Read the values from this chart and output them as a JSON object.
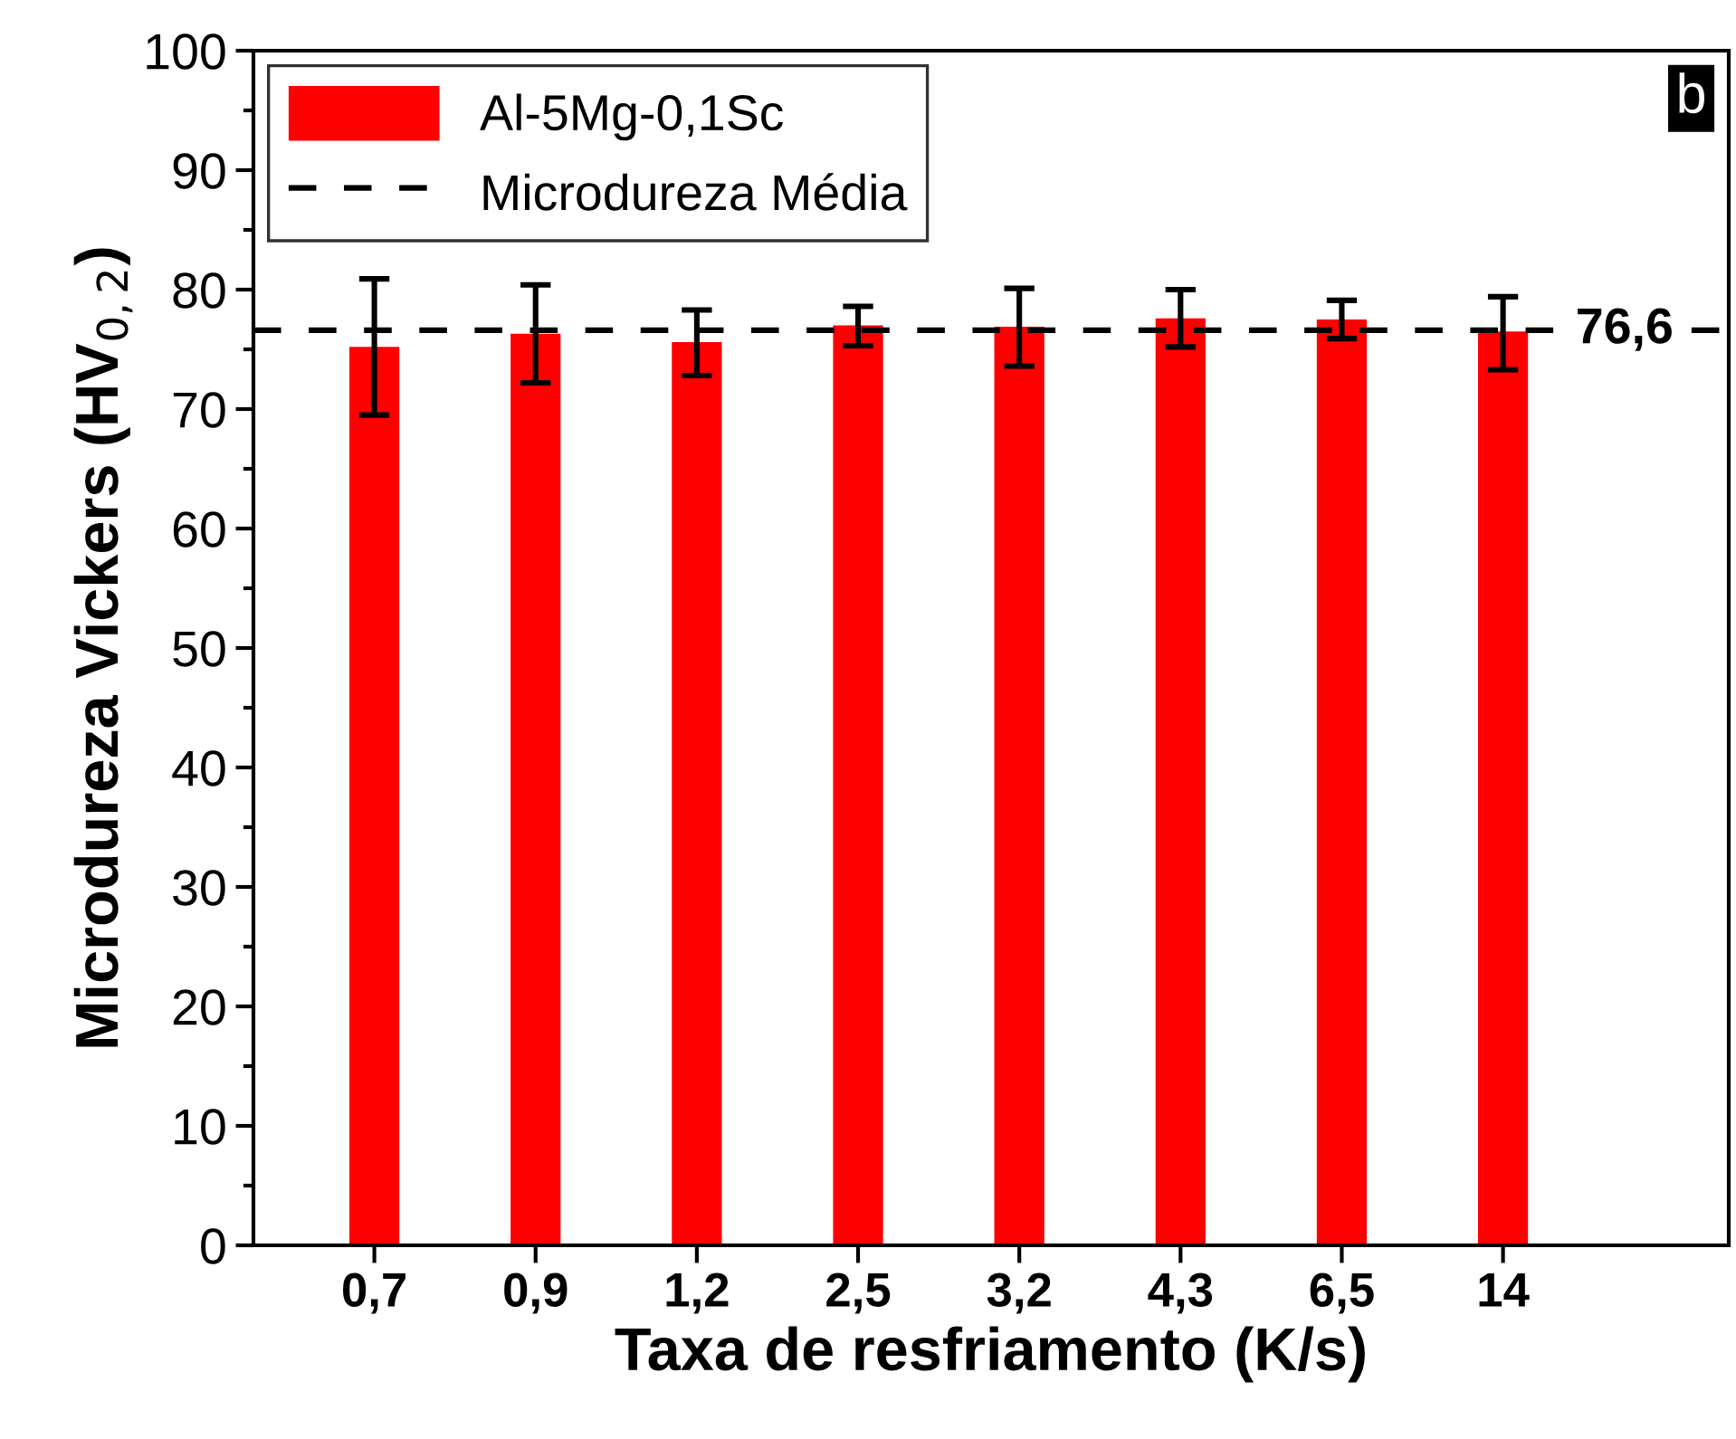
{
  "chart_data": {
    "type": "bar",
    "xlabel": "Taxa de resfriamento (K/s)",
    "ylabel": "Microdureza Vickers (HV$_{0,2}$)",
    "categories": [
      "0,7",
      "0,9",
      "1,2",
      "2,5",
      "3,2",
      "4,3",
      "6,5",
      "14"
    ],
    "series": [
      {
        "name": "Al-5Mg-0,1Sc",
        "color": "#ff0000",
        "values": [
          75.2,
          76.3,
          75.6,
          77.0,
          76.9,
          77.6,
          77.5,
          76.5
        ],
        "errors": [
          [
            69.5,
            80.9
          ],
          [
            72.2,
            80.4
          ],
          [
            72.8,
            78.3
          ],
          [
            75.3,
            78.6
          ],
          [
            73.6,
            80.1
          ],
          [
            75.2,
            80.0
          ],
          [
            75.9,
            79.1
          ],
          [
            73.3,
            79.4
          ]
        ]
      }
    ],
    "ylim": [
      0,
      100
    ],
    "yticks": [
      0,
      10,
      20,
      30,
      40,
      50,
      60,
      70,
      80,
      90,
      100
    ],
    "ref_lines": [
      {
        "axis": "y",
        "value": 76.6,
        "label": "Microdureza Média",
        "color": "#000000",
        "line_style": "dashed"
      }
    ],
    "annotations": [
      {
        "text": "76,6",
        "y": 76.6
      },
      "b"
    ],
    "legend": "top left",
    "grid": false
  }
}
